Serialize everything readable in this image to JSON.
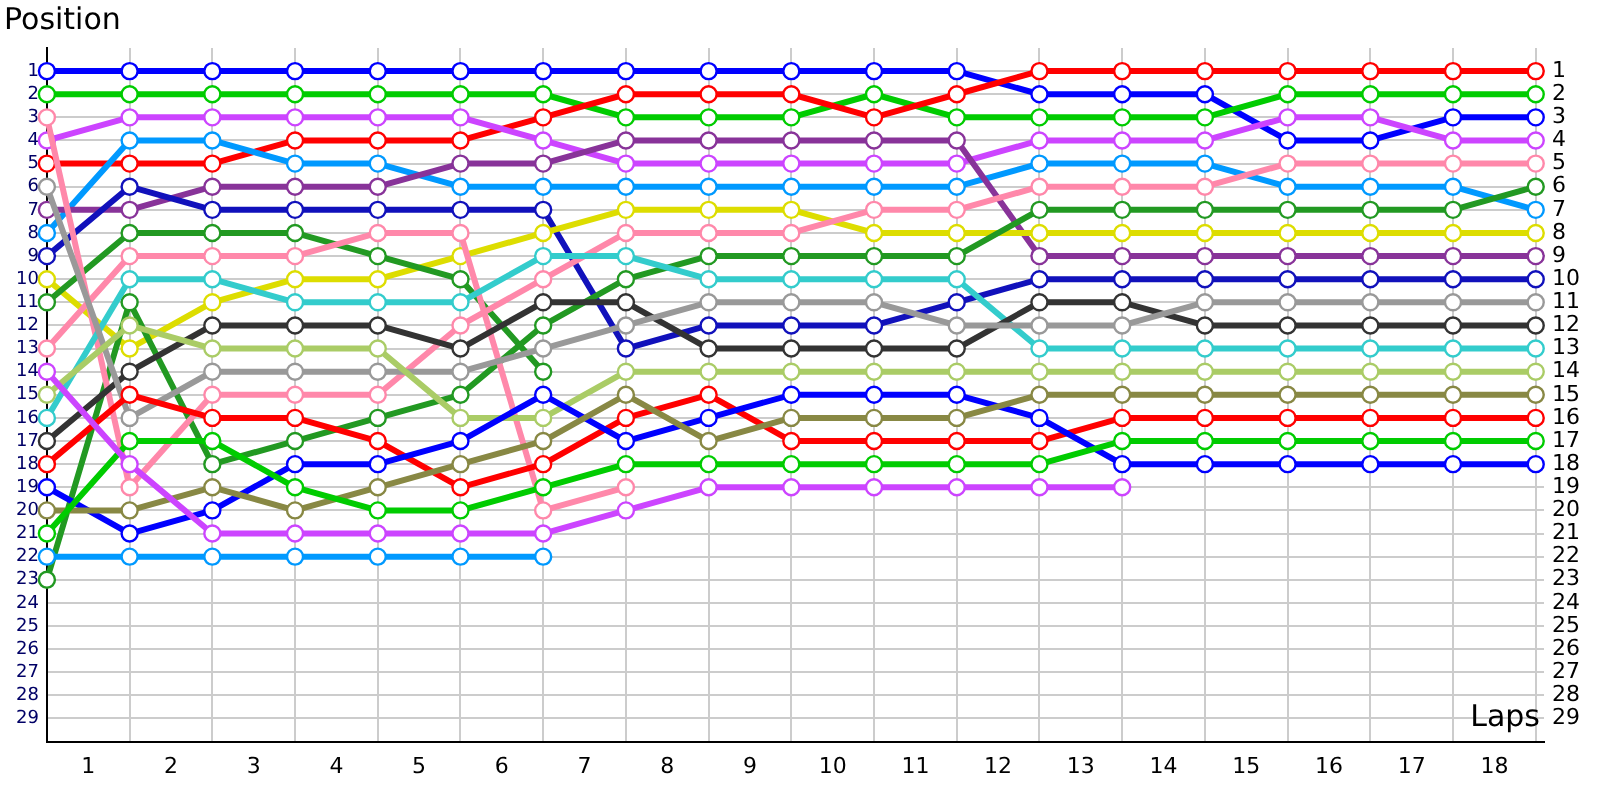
{
  "chart_data": {
    "type": "line",
    "xlabel": "Laps",
    "ylabel": "Position",
    "marker": "circle",
    "line_style": "solid",
    "grid": true,
    "x": [
      0,
      1,
      2,
      3,
      4,
      5,
      6,
      7,
      8,
      9,
      10,
      11,
      12,
      13,
      14,
      15,
      16,
      17,
      18
    ],
    "xlim": [
      0,
      18.1
    ],
    "xticks": [
      {
        "value": 0.5,
        "label": "1"
      },
      {
        "value": 1.5,
        "label": "2"
      },
      {
        "value": 2.5,
        "label": "3"
      },
      {
        "value": 3.5,
        "label": "4"
      },
      {
        "value": 4.5,
        "label": "5"
      },
      {
        "value": 5.5,
        "label": "6"
      },
      {
        "value": 6.5,
        "label": "7"
      },
      {
        "value": 7.5,
        "label": "8"
      },
      {
        "value": 8.5,
        "label": "9"
      },
      {
        "value": 9.5,
        "label": "10"
      },
      {
        "value": 10.5,
        "label": "11"
      },
      {
        "value": 11.5,
        "label": "12"
      },
      {
        "value": 12.5,
        "label": "13"
      },
      {
        "value": 13.5,
        "label": "14"
      },
      {
        "value": 14.5,
        "label": "15"
      },
      {
        "value": 15.5,
        "label": "16"
      },
      {
        "value": 16.5,
        "label": "17"
      },
      {
        "value": 17.5,
        "label": "18"
      }
    ],
    "ylim": [
      30,
      0
    ],
    "yticks": [
      1,
      2,
      3,
      4,
      5,
      6,
      7,
      8,
      9,
      10,
      11,
      12,
      13,
      14,
      15,
      16,
      17,
      18,
      19,
      20,
      21,
      22,
      23,
      24,
      25,
      26,
      27,
      28,
      29
    ],
    "y2lim": [
      30,
      0
    ],
    "y2ticks": [
      1,
      2,
      3,
      4,
      5,
      6,
      7,
      8,
      9,
      10,
      11,
      12,
      13,
      14,
      15,
      16,
      17,
      18,
      19,
      20,
      21,
      22,
      23,
      24,
      25,
      26,
      27,
      28,
      29
    ],
    "series": [
      {
        "color": "#0000ff",
        "values": [
          1,
          1,
          1,
          1,
          1,
          1,
          1,
          1,
          1,
          1,
          1,
          1,
          2,
          2,
          2,
          4,
          4,
          3,
          3
        ]
      },
      {
        "color": "#00cc00",
        "values": [
          2,
          2,
          2,
          2,
          2,
          2,
          2,
          3,
          3,
          3,
          2,
          3,
          3,
          3,
          3,
          2,
          2,
          2,
          2
        ]
      },
      {
        "color": "#ff0000",
        "values": [
          5,
          5,
          5,
          4,
          4,
          4,
          3,
          2,
          2,
          2,
          3,
          2,
          1,
          1,
          1,
          1,
          1,
          1,
          1
        ]
      },
      {
        "color": "#cc44ff",
        "values": [
          4,
          3,
          3,
          3,
          3,
          3,
          4,
          5,
          5,
          5,
          5,
          5,
          4,
          4,
          4,
          3,
          3,
          4,
          4
        ]
      },
      {
        "color": "#0099ff",
        "values": [
          8,
          4,
          4,
          5,
          5,
          6,
          6,
          6,
          6,
          6,
          6,
          6,
          5,
          5,
          5,
          6,
          6,
          6,
          7
        ]
      },
      {
        "color": "#883399",
        "values": [
          7,
          7,
          6,
          6,
          6,
          5,
          5,
          4,
          4,
          4,
          4,
          4,
          9,
          9,
          9,
          9,
          9,
          9,
          9
        ]
      },
      {
        "color": "#1111bb",
        "values": [
          9,
          6,
          7,
          7,
          7,
          7,
          7,
          13,
          12,
          12,
          12,
          11,
          10,
          10,
          10,
          10,
          10,
          10,
          10
        ]
      },
      {
        "color": "#dddd00",
        "values": [
          10,
          13,
          11,
          10,
          10,
          9,
          8,
          7,
          7,
          7,
          8,
          8,
          8,
          8,
          8,
          8,
          8,
          8,
          8
        ]
      },
      {
        "color": "#229922",
        "values": [
          11,
          8,
          8,
          8,
          9,
          10,
          14,
          null,
          null,
          null,
          null,
          null,
          null,
          null,
          null,
          null,
          null,
          null,
          null
        ]
      },
      {
        "color": "#229922",
        "values": [
          23,
          11,
          18,
          17,
          16,
          15,
          12,
          10,
          9,
          9,
          9,
          9,
          7,
          7,
          7,
          7,
          7,
          7,
          6
        ]
      },
      {
        "color": "#ff88aa",
        "values": [
          3,
          19,
          15,
          15,
          15,
          12,
          10,
          8,
          8,
          8,
          7,
          7,
          6,
          6,
          6,
          5,
          5,
          5,
          5
        ]
      },
      {
        "color": "#ff88aa",
        "values": [
          13,
          9,
          9,
          9,
          8,
          8,
          20,
          19,
          null,
          null,
          null,
          null,
          null,
          null,
          null,
          null,
          null,
          null,
          null
        ]
      },
      {
        "color": "#33cccc",
        "values": [
          16,
          10,
          10,
          11,
          11,
          11,
          9,
          9,
          10,
          10,
          10,
          10,
          13,
          13,
          13,
          13,
          13,
          13,
          13
        ]
      },
      {
        "color": "#333333",
        "values": [
          17,
          14,
          12,
          12,
          12,
          13,
          11,
          11,
          13,
          13,
          13,
          13,
          11,
          11,
          12,
          12,
          12,
          12,
          12
        ]
      },
      {
        "color": "#999999",
        "values": [
          6,
          16,
          14,
          14,
          14,
          14,
          13,
          12,
          11,
          11,
          11,
          12,
          12,
          12,
          11,
          11,
          11,
          11,
          11
        ]
      },
      {
        "color": "#aacc66",
        "values": [
          15,
          12,
          13,
          13,
          13,
          16,
          16,
          14,
          14,
          14,
          14,
          14,
          14,
          14,
          14,
          14,
          14,
          14,
          14
        ]
      },
      {
        "color": "#ff0000",
        "values": [
          18,
          15,
          16,
          16,
          17,
          19,
          18,
          16,
          15,
          17,
          17,
          17,
          17,
          16,
          16,
          16,
          16,
          16,
          16
        ]
      },
      {
        "color": "#0000ff",
        "values": [
          19,
          21,
          20,
          18,
          18,
          17,
          15,
          17,
          16,
          15,
          15,
          15,
          16,
          18,
          18,
          18,
          18,
          18,
          18
        ]
      },
      {
        "color": "#888844",
        "values": [
          20,
          20,
          19,
          20,
          19,
          18,
          17,
          15,
          17,
          16,
          16,
          16,
          15,
          15,
          15,
          15,
          15,
          15,
          15
        ]
      },
      {
        "color": "#00cc00",
        "values": [
          21,
          17,
          17,
          19,
          20,
          20,
          19,
          18,
          18,
          18,
          18,
          18,
          18,
          17,
          17,
          17,
          17,
          17,
          17
        ]
      },
      {
        "color": "#cc44ff",
        "values": [
          14,
          18,
          21,
          21,
          21,
          21,
          21,
          20,
          19,
          19,
          19,
          19,
          19,
          19,
          null,
          null,
          null,
          null,
          null
        ]
      },
      {
        "color": "#0099ff",
        "values": [
          22,
          22,
          22,
          22,
          22,
          22,
          22,
          null,
          null,
          null,
          null,
          null,
          null,
          null,
          null,
          null,
          null,
          null,
          null
        ]
      }
    ]
  }
}
